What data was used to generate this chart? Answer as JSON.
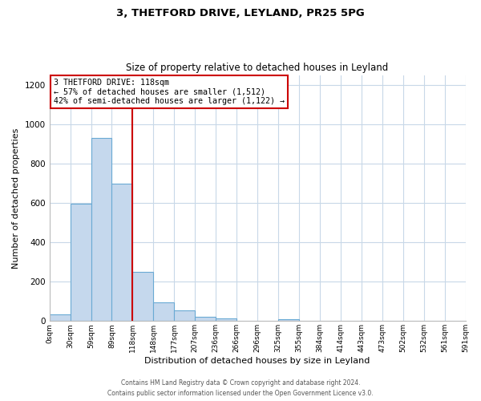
{
  "title": "3, THETFORD DRIVE, LEYLAND, PR25 5PG",
  "subtitle": "Size of property relative to detached houses in Leyland",
  "xlabel": "Distribution of detached houses by size in Leyland",
  "ylabel": "Number of detached properties",
  "bar_left_edges": [
    0,
    29.5,
    59,
    88.5,
    118,
    147.5,
    177,
    206.5,
    236,
    265.5,
    295,
    324.5,
    354,
    383.5,
    413,
    442.5,
    472,
    501.5,
    531,
    560.5
  ],
  "bar_heights": [
    35,
    595,
    930,
    700,
    248,
    95,
    55,
    20,
    12,
    0,
    0,
    10,
    0,
    0,
    0,
    0,
    0,
    0,
    0,
    0
  ],
  "bin_width": 29.5,
  "tick_labels": [
    "0sqm",
    "30sqm",
    "59sqm",
    "89sqm",
    "118sqm",
    "148sqm",
    "177sqm",
    "207sqm",
    "236sqm",
    "266sqm",
    "296sqm",
    "325sqm",
    "355sqm",
    "384sqm",
    "414sqm",
    "443sqm",
    "473sqm",
    "502sqm",
    "532sqm",
    "561sqm",
    "591sqm"
  ],
  "tick_positions": [
    0,
    29.5,
    59,
    88.5,
    118,
    147.5,
    177,
    206.5,
    236,
    265.5,
    295,
    324.5,
    354,
    383.5,
    413,
    442.5,
    472,
    501.5,
    531,
    560.5,
    590
  ],
  "bar_color": "#c5d8ed",
  "bar_edge_color": "#6aaad4",
  "vline_x": 118,
  "vline_color": "#cc0000",
  "ylim": [
    0,
    1250
  ],
  "xlim": [
    0,
    590
  ],
  "annotation_line1": "3 THETFORD DRIVE: 118sqm",
  "annotation_line2": "← 57% of detached houses are smaller (1,512)",
  "annotation_line3": "42% of semi-detached houses are larger (1,122) →",
  "annotation_box_color": "#ffffff",
  "annotation_box_edge_color": "#cc0000",
  "yticks": [
    0,
    200,
    400,
    600,
    800,
    1000,
    1200
  ],
  "footer1": "Contains HM Land Registry data © Crown copyright and database right 2024.",
  "footer2": "Contains public sector information licensed under the Open Government Licence v3.0.",
  "background_color": "#ffffff",
  "grid_color": "#c8d8e8"
}
